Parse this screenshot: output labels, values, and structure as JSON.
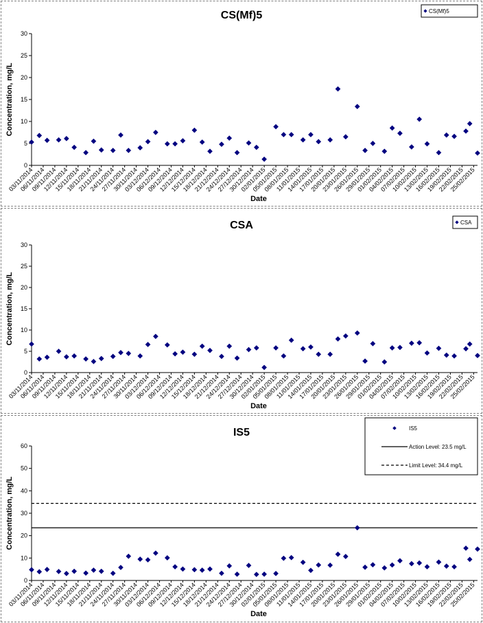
{
  "dates": [
    "03/11/2014",
    "06/11/2014",
    "09/11/2014",
    "12/11/2014",
    "15/11/2014",
    "18/11/2014",
    "21/11/2014",
    "24/11/2014",
    "27/11/2014",
    "30/11/2014",
    "03/12/2014",
    "06/12/2014",
    "09/12/2014",
    "12/12/2014",
    "15/12/2014",
    "18/12/2014",
    "21/12/2014",
    "24/12/2014",
    "27/12/2014",
    "30/12/2014",
    "02/01/2015",
    "05/01/2015",
    "08/01/2015",
    "11/01/2015",
    "14/01/2015",
    "17/01/2015",
    "20/01/2015",
    "23/01/2015",
    "26/01/2015",
    "29/01/2015",
    "01/02/2015",
    "04/02/2015",
    "07/02/2015",
    "10/02/2015",
    "13/02/2015",
    "16/02/2015",
    "19/02/2015",
    "22/02/2015",
    "25/02/2015"
  ],
  "chart_data": [
    {
      "type": "scatter",
      "title": "CS(Mf)5",
      "xlabel": "Date",
      "ylabel": "Concentration, mg/L",
      "ylim": [
        0,
        30
      ],
      "yticks": [
        0,
        5,
        10,
        15,
        20,
        25,
        30
      ],
      "xlim": [
        "03/11/2014",
        "26/02/2015"
      ],
      "legend_position": "top-right",
      "grid": false,
      "series": [
        {
          "name": "CS(Mf)5",
          "color": "#000080",
          "marker": "diamond",
          "x": [
            "03/11/2014",
            "05/11/2014",
            "07/11/2014",
            "10/11/2014",
            "12/11/2014",
            "14/11/2014",
            "17/11/2014",
            "19/11/2014",
            "21/11/2014",
            "24/11/2014",
            "26/11/2014",
            "28/11/2014",
            "01/12/2014",
            "03/12/2014",
            "05/12/2014",
            "08/12/2014",
            "10/12/2014",
            "12/12/2014",
            "15/12/2014",
            "17/12/2014",
            "19/12/2014",
            "22/12/2014",
            "24/12/2014",
            "26/12/2014",
            "29/12/2014",
            "31/12/2014",
            "02/01/2015",
            "05/01/2015",
            "07/01/2015",
            "09/01/2015",
            "12/01/2015",
            "14/01/2015",
            "16/01/2015",
            "19/01/2015",
            "21/01/2015",
            "23/01/2015",
            "26/01/2015",
            "28/01/2015",
            "30/01/2015",
            "02/02/2015",
            "04/02/2015",
            "06/02/2015",
            "09/02/2015",
            "11/02/2015",
            "13/02/2015",
            "16/02/2015",
            "18/02/2015",
            "20/02/2015",
            "23/02/2015",
            "24/02/2015",
            "26/02/2015"
          ],
          "y": [
            5.3,
            6.8,
            5.7,
            5.8,
            6.1,
            4.1,
            2.9,
            5.5,
            3.5,
            3.4,
            6.9,
            3.4,
            4.0,
            5.4,
            7.5,
            4.9,
            4.9,
            5.6,
            8.0,
            5.3,
            3.2,
            4.8,
            6.2,
            2.9,
            5.1,
            4.1,
            1.4,
            8.8,
            7.0,
            7.0,
            5.8,
            7.0,
            5.4,
            5.8,
            17.4,
            6.5,
            13.4,
            3.4,
            5.0,
            3.2,
            8.5,
            7.3,
            4.2,
            10.5,
            4.9,
            2.9,
            6.9,
            6.6,
            7.8,
            9.5,
            2.8
          ]
        }
      ]
    },
    {
      "type": "scatter",
      "title": "CSA",
      "xlabel": "Date",
      "ylabel": "Concentration, mg/L",
      "ylim": [
        0,
        30
      ],
      "yticks": [
        0,
        5,
        10,
        15,
        20,
        25,
        30
      ],
      "xlim": [
        "03/11/2014",
        "26/02/2015"
      ],
      "legend_position": "top-right",
      "grid": false,
      "series": [
        {
          "name": "CSA",
          "color": "#000080",
          "marker": "diamond",
          "x": [
            "03/11/2014",
            "05/11/2014",
            "07/11/2014",
            "10/11/2014",
            "12/11/2014",
            "14/11/2014",
            "17/11/2014",
            "19/11/2014",
            "21/11/2014",
            "24/11/2014",
            "26/11/2014",
            "28/11/2014",
            "01/12/2014",
            "03/12/2014",
            "05/12/2014",
            "08/12/2014",
            "10/12/2014",
            "12/12/2014",
            "15/12/2014",
            "17/12/2014",
            "19/12/2014",
            "22/12/2014",
            "24/12/2014",
            "26/12/2014",
            "29/12/2014",
            "31/12/2014",
            "02/01/2015",
            "05/01/2015",
            "07/01/2015",
            "09/01/2015",
            "12/01/2015",
            "14/01/2015",
            "16/01/2015",
            "19/01/2015",
            "21/01/2015",
            "23/01/2015",
            "26/01/2015",
            "28/01/2015",
            "30/01/2015",
            "02/02/2015",
            "04/02/2015",
            "06/02/2015",
            "09/02/2015",
            "11/02/2015",
            "13/02/2015",
            "16/02/2015",
            "18/02/2015",
            "20/02/2015",
            "23/02/2015",
            "24/02/2015",
            "26/02/2015"
          ],
          "y": [
            6.7,
            3.2,
            3.6,
            5.0,
            3.7,
            3.9,
            3.2,
            2.6,
            3.3,
            3.8,
            4.7,
            4.5,
            3.9,
            6.6,
            8.5,
            6.5,
            4.4,
            4.8,
            4.3,
            6.2,
            5.2,
            3.8,
            6.2,
            3.4,
            5.4,
            5.8,
            1.2,
            5.8,
            3.9,
            7.6,
            5.6,
            6.0,
            4.3,
            4.3,
            7.9,
            8.6,
            9.3,
            2.7,
            6.8,
            2.5,
            5.8,
            5.9,
            6.9,
            7.0,
            4.6,
            5.7,
            4.1,
            3.9,
            5.6,
            6.7,
            4.0
          ]
        }
      ]
    },
    {
      "type": "scatter",
      "title": "IS5",
      "xlabel": "Date",
      "ylabel": "Concentration, mg/L",
      "ylim": [
        0,
        60
      ],
      "yticks": [
        0,
        10,
        20,
        30,
        40,
        50,
        60
      ],
      "xlim": [
        "03/11/2014",
        "26/02/2015"
      ],
      "legend_position": "top-right",
      "grid": false,
      "series": [
        {
          "name": "IS5",
          "color": "#000080",
          "marker": "diamond",
          "x": [
            "03/11/2014",
            "05/11/2014",
            "07/11/2014",
            "10/11/2014",
            "12/11/2014",
            "14/11/2014",
            "17/11/2014",
            "19/11/2014",
            "21/11/2014",
            "24/11/2014",
            "26/11/2014",
            "28/11/2014",
            "01/12/2014",
            "03/12/2014",
            "05/12/2014",
            "08/12/2014",
            "10/12/2014",
            "12/12/2014",
            "15/12/2014",
            "17/12/2014",
            "19/12/2014",
            "22/12/2014",
            "24/12/2014",
            "26/12/2014",
            "29/12/2014",
            "31/12/2014",
            "02/01/2015",
            "05/01/2015",
            "07/01/2015",
            "09/01/2015",
            "12/01/2015",
            "14/01/2015",
            "16/01/2015",
            "19/01/2015",
            "21/01/2015",
            "23/01/2015",
            "26/01/2015",
            "28/01/2015",
            "30/01/2015",
            "02/02/2015",
            "04/02/2015",
            "06/02/2015",
            "09/02/2015",
            "11/02/2015",
            "13/02/2015",
            "16/02/2015",
            "18/02/2015",
            "20/02/2015",
            "23/02/2015",
            "24/02/2015",
            "26/02/2015"
          ],
          "y": [
            4.8,
            3.9,
            4.9,
            4.0,
            3.1,
            4.1,
            3.3,
            4.6,
            4.1,
            3.2,
            5.8,
            10.8,
            9.5,
            9.2,
            12.2,
            10.1,
            6.1,
            5.1,
            4.8,
            4.6,
            5.1,
            3.2,
            6.5,
            2.8,
            6.7,
            2.7,
            2.8,
            3.1,
            9.9,
            10.2,
            8.1,
            4.5,
            6.9,
            6.8,
            11.7,
            10.7,
            23.5,
            5.9,
            7.0,
            5.6,
            6.9,
            8.8,
            7.5,
            7.8,
            6.1,
            8.2,
            6.4,
            6.1,
            14.4,
            9.4,
            14.0
          ]
        },
        {
          "name": "Action Level: 23.5 mg/L",
          "type": "hline",
          "value": 23.5,
          "color": "#000000",
          "dash": "solid"
        },
        {
          "name": "Limit Level: 34.4 mg/L",
          "type": "hline",
          "value": 34.4,
          "color": "#000000",
          "dash": "dashed"
        }
      ]
    }
  ]
}
